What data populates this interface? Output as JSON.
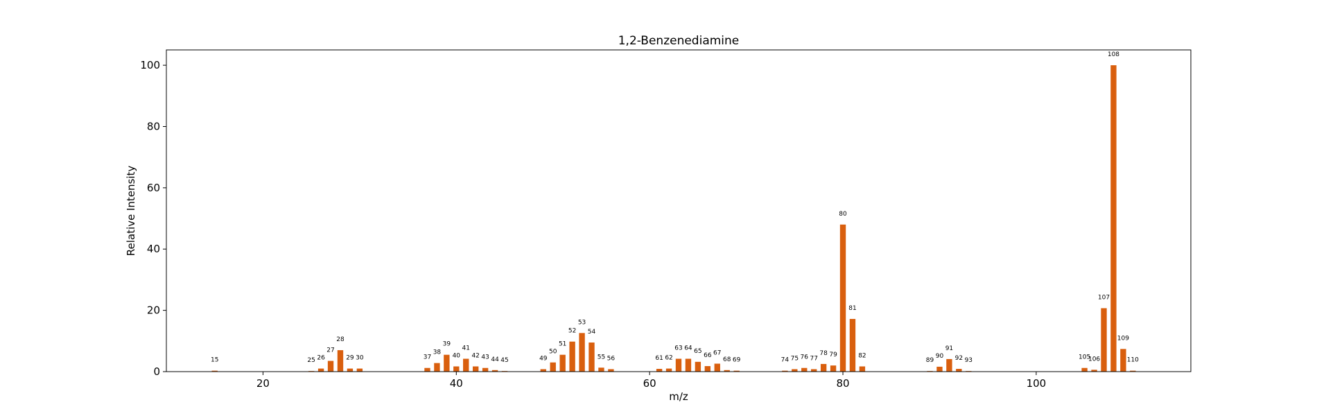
{
  "chart_data": {
    "type": "bar",
    "title": "1,2-Benzenediamine",
    "xlabel": "m/z",
    "ylabel": "Relative Intensity",
    "xlim": [
      10,
      116
    ],
    "ylim": [
      0,
      105
    ],
    "xticks": [
      20,
      40,
      60,
      80,
      100
    ],
    "yticks": [
      0,
      20,
      40,
      60,
      80,
      100
    ],
    "grid": false,
    "bar_color": "#d95f0e",
    "x": [
      15,
      25,
      26,
      27,
      28,
      29,
      30,
      37,
      38,
      39,
      40,
      41,
      42,
      43,
      44,
      45,
      49,
      50,
      51,
      52,
      53,
      54,
      55,
      56,
      61,
      62,
      63,
      64,
      65,
      66,
      67,
      68,
      69,
      74,
      75,
      76,
      77,
      78,
      79,
      80,
      81,
      82,
      89,
      90,
      91,
      92,
      93,
      105,
      106,
      107,
      108,
      109,
      110
    ],
    "values": [
      0.3,
      0.2,
      1.0,
      3.5,
      7.0,
      1.0,
      1.0,
      1.2,
      2.8,
      5.5,
      1.7,
      4.2,
      1.7,
      1.2,
      0.5,
      0.2,
      0.8,
      3.0,
      5.5,
      9.8,
      12.6,
      9.5,
      1.3,
      0.8,
      0.9,
      1.0,
      4.2,
      4.2,
      3.2,
      1.8,
      2.6,
      0.5,
      0.3,
      0.3,
      0.8,
      1.2,
      0.8,
      2.5,
      2.0,
      48.0,
      17.2,
      1.7,
      0.2,
      1.6,
      4.1,
      0.9,
      0.2,
      1.2,
      0.6,
      20.7,
      100.0,
      7.4,
      0.3
    ],
    "labels": [
      "15",
      "25",
      "26",
      "27",
      "28",
      "29",
      "30",
      "37",
      "38",
      "39",
      "40",
      "41",
      "42",
      "43",
      "44",
      "45",
      "49",
      "50",
      "51",
      "52",
      "53",
      "54",
      "55",
      "56",
      "61",
      "62",
      "63",
      "64",
      "65",
      "66",
      "67",
      "68",
      "69",
      "74",
      "75",
      "76",
      "77",
      "78",
      "79",
      "80",
      "81",
      "82",
      "89",
      "90",
      "91",
      "92",
      "93",
      "105",
      "106",
      "107",
      "108",
      "109",
      "110"
    ]
  }
}
